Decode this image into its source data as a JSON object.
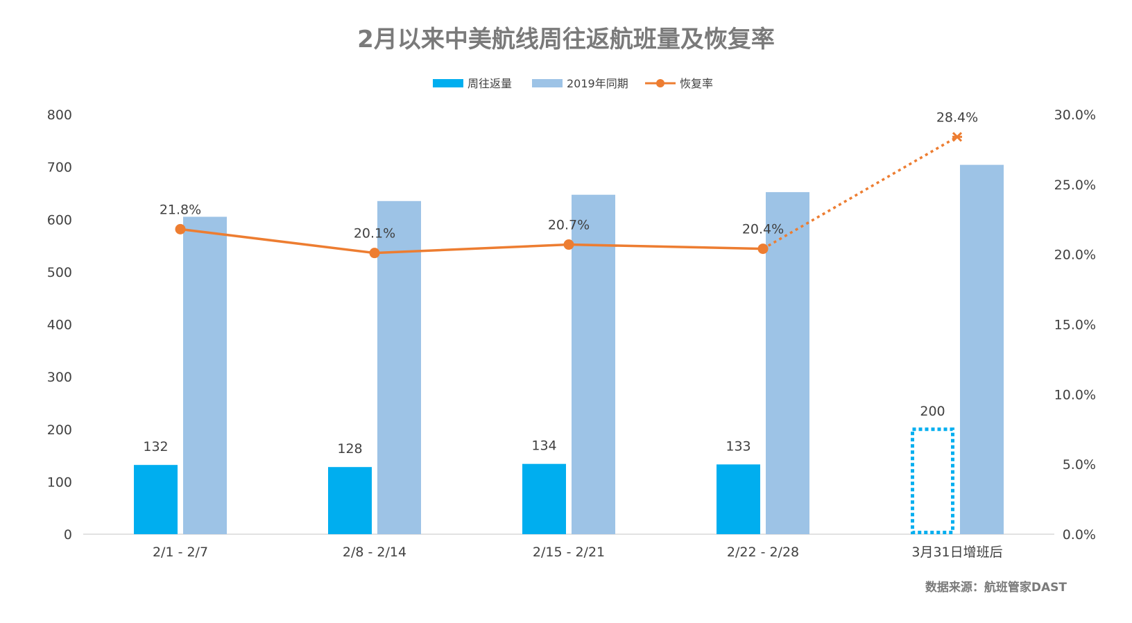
{
  "chart_data": {
    "type": "bar",
    "title": "2月以来中美航线周往返航班量及恢复率",
    "categories": [
      "2/1 - 2/7",
      "2/8 - 2/14",
      "2/15 - 2/21",
      "2/22 - 2/28",
      "3月31日增班后"
    ],
    "series": [
      {
        "name": "周往返量",
        "type": "bar",
        "axis": "left",
        "color": "#00aeef",
        "values": [
          132,
          128,
          134,
          133,
          200
        ],
        "labels": [
          "132",
          "128",
          "134",
          "133",
          "200"
        ],
        "projected_index": 4
      },
      {
        "name": "2019年同期",
        "type": "bar",
        "axis": "right_none",
        "color": "#9dc3e6",
        "values": [
          605,
          635,
          647,
          652,
          704
        ]
      },
      {
        "name": "恢复率",
        "type": "line",
        "axis": "right",
        "color": "#ed7d31",
        "values": [
          21.8,
          20.1,
          20.7,
          20.4,
          28.4
        ],
        "labels": [
          "21.8%",
          "20.1%",
          "20.7%",
          "20.4%",
          "28.4%"
        ],
        "projected_index": 4
      }
    ],
    "y_left": {
      "min": 0,
      "max": 800,
      "ticks": [
        "0",
        "100",
        "200",
        "300",
        "400",
        "500",
        "600",
        "700",
        "800"
      ]
    },
    "y_right": {
      "min": 0,
      "max": 30,
      "ticks": [
        "0.0%",
        "5.0%",
        "10.0%",
        "15.0%",
        "20.0%",
        "25.0%",
        "30.0%"
      ]
    },
    "legend_position": "top",
    "grid": false,
    "source": "数据来源：航班管家DAST"
  }
}
